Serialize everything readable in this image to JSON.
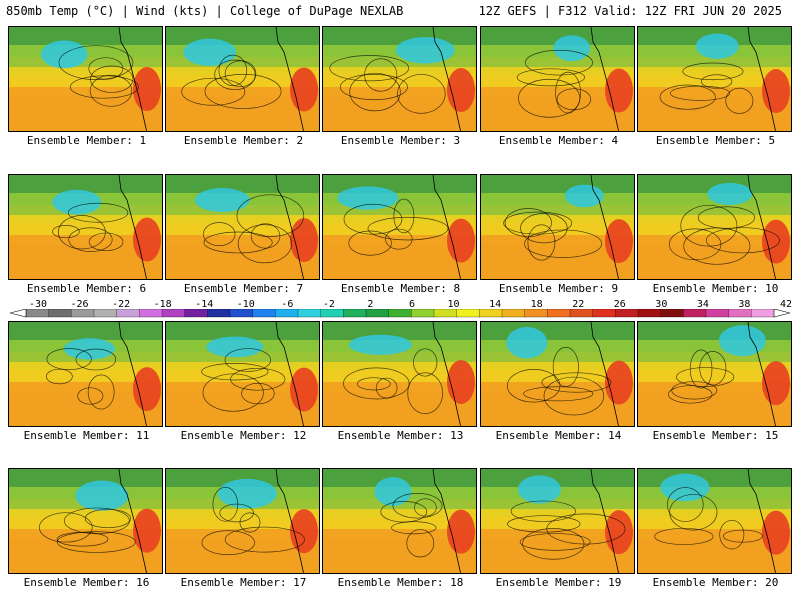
{
  "header": {
    "left": "850mb Temp (°C) | Wind (kts) | College of DuPage NEXLAB",
    "right": "12Z GEFS | F312 Valid: 12Z FRI JUN 20 2025"
  },
  "panels": [
    {
      "label": "Ensemble Member: 1"
    },
    {
      "label": "Ensemble Member: 2"
    },
    {
      "label": "Ensemble Member: 3"
    },
    {
      "label": "Ensemble Member: 4"
    },
    {
      "label": "Ensemble Member: 5"
    },
    {
      "label": "Ensemble Member: 6"
    },
    {
      "label": "Ensemble Member: 7"
    },
    {
      "label": "Ensemble Member: 8"
    },
    {
      "label": "Ensemble Member: 9"
    },
    {
      "label": "Ensemble Member: 10"
    },
    {
      "label": "Ensemble Member: 11"
    },
    {
      "label": "Ensemble Member: 12"
    },
    {
      "label": "Ensemble Member: 13"
    },
    {
      "label": "Ensemble Member: 14"
    },
    {
      "label": "Ensemble Member: 15"
    },
    {
      "label": "Ensemble Member: 16"
    },
    {
      "label": "Ensemble Member: 17"
    },
    {
      "label": "Ensemble Member: 18"
    },
    {
      "label": "Ensemble Member: 19"
    },
    {
      "label": "Ensemble Member: 20"
    }
  ],
  "colorbar": {
    "ticks": [
      "-30",
      "-26",
      "-22",
      "-18",
      "-14",
      "-10",
      "-6",
      "-2",
      "2",
      "6",
      "10",
      "14",
      "18",
      "22",
      "26",
      "30",
      "34",
      "38",
      "42"
    ],
    "colors": [
      "#8a8a8a",
      "#6e6e6e",
      "#9a9a9a",
      "#b0b0b0",
      "#c8a0d8",
      "#d070e0",
      "#b040c0",
      "#7020a0",
      "#2030a0",
      "#2050d0",
      "#2080f0",
      "#20b0f0",
      "#30d0e0",
      "#20d0b0",
      "#20b060",
      "#20a040",
      "#40b030",
      "#90d030",
      "#d0e020",
      "#f0f020",
      "#f0d020",
      "#f0b020",
      "#f09020",
      "#f07020",
      "#e05020",
      "#e03020",
      "#c02020",
      "#a01010",
      "#801010",
      "#c02060",
      "#d040a0",
      "#e070c0",
      "#f0a0e0"
    ],
    "theme": {
      "ocean": "#f2a020",
      "warm": "#e84020",
      "cool": "#30c8e0",
      "green": "#3aa040",
      "line": "#000000"
    }
  }
}
